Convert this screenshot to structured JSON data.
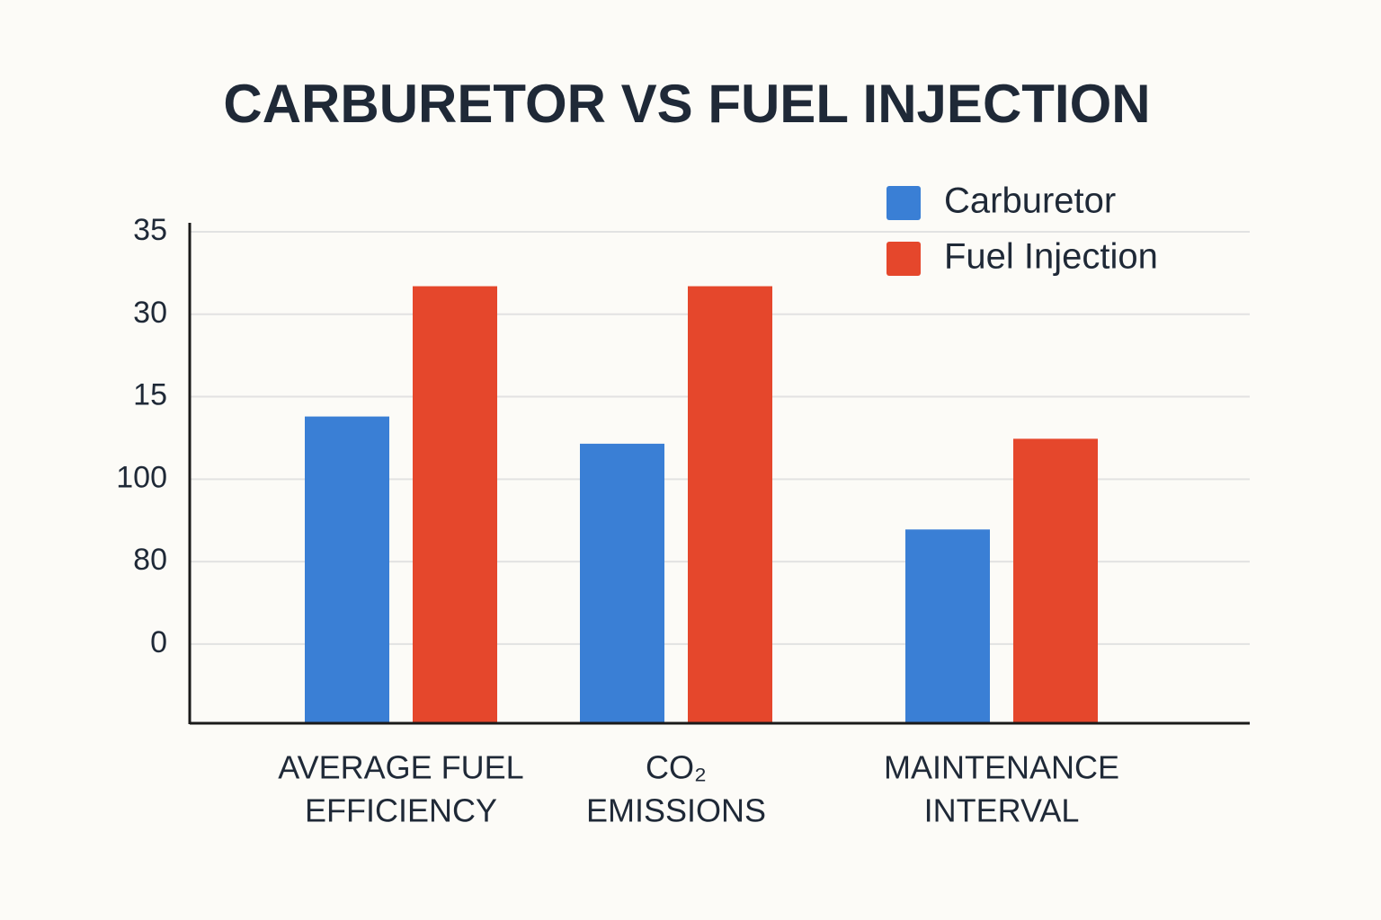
{
  "chart_data": {
    "type": "bar",
    "title": "CARBURETOR VS FUEL INJECTION",
    "categories": [
      [
        "AVERAGE FUEL",
        "EFFICIENCY"
      ],
      [
        "CO₂",
        "EMISSIONS"
      ],
      [
        "MAINTENANCE",
        "INTERVAL"
      ]
    ],
    "series": [
      {
        "name": "Carburetor",
        "color": "#3a7fd5",
        "values": [
          2.76,
          2.43,
          1.39
        ]
      },
      {
        "name": "Fuel Injection",
        "color": "#e5472c",
        "values": [
          4.34,
          4.34,
          2.49
        ]
      }
    ],
    "ylim": [
      -0.96,
      5
    ],
    "yticks": [
      {
        "value": 5,
        "label": "35"
      },
      {
        "value": 4,
        "label": "30"
      },
      {
        "value": 3,
        "label": "15"
      },
      {
        "value": 2,
        "label": "100"
      },
      {
        "value": 1,
        "label": "80"
      },
      {
        "value": 0,
        "label": "0"
      }
    ],
    "grid": true,
    "legend": "top-right"
  }
}
